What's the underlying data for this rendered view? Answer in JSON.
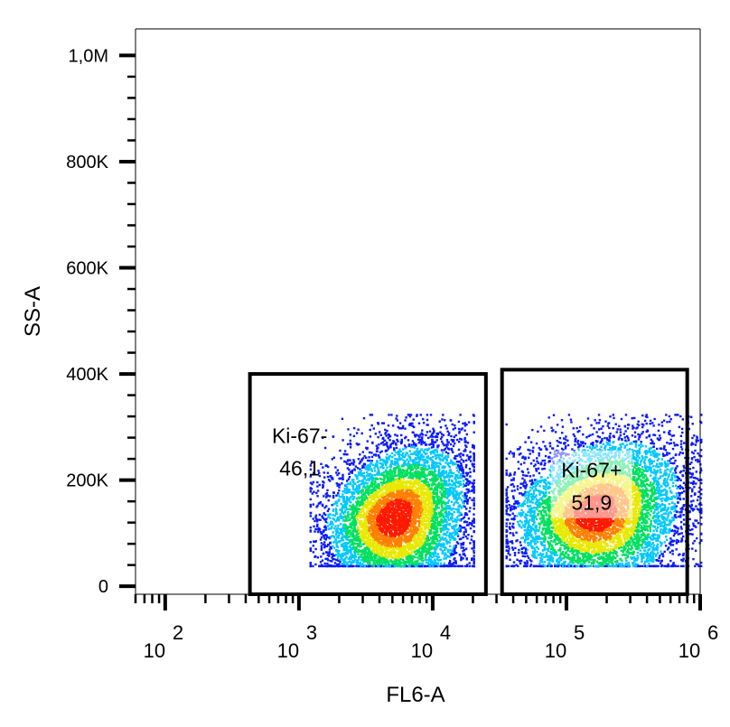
{
  "chart_data": {
    "type": "scatter",
    "subtype": "flow-cytometry-density-dot-plot",
    "xlabel": "FL6-A",
    "ylabel": "SS-A",
    "x_scale": "log",
    "xlim": [
      60,
      1000000
    ],
    "ylim": [
      -15000,
      1050000
    ],
    "x_ticks": [
      {
        "base": "10",
        "exp": "2",
        "value": 100
      },
      {
        "base": "10",
        "exp": "3",
        "value": 1000
      },
      {
        "base": "10",
        "exp": "4",
        "value": 10000
      },
      {
        "base": "10",
        "exp": "5",
        "value": 100000
      },
      {
        "base": "10",
        "exp": "6",
        "value": 1000000
      }
    ],
    "y_ticks": [
      {
        "label": "0",
        "value": 0
      },
      {
        "label": "200K",
        "value": 200000
      },
      {
        "label": "400K",
        "value": 400000
      },
      {
        "label": "600K",
        "value": 600000
      },
      {
        "label": "800K",
        "value": 800000
      },
      {
        "label": "1,0M",
        "value": 1000000
      }
    ],
    "gates": [
      {
        "name": "Ki-67-",
        "percent": "46,1",
        "x_range": [
          430,
          25000
        ],
        "y_range": [
          -15000,
          400000
        ]
      },
      {
        "name": "Ki-67+",
        "percent": "51,9",
        "x_range": [
          33000,
          800000
        ],
        "y_range": [
          -15000,
          408000
        ]
      }
    ],
    "populations": [
      {
        "gate": "Ki-67-",
        "x_range": [
          1200,
          20000
        ],
        "y_range": [
          40000,
          325000
        ],
        "peak_x": 5000,
        "peak_y": 130000
      },
      {
        "gate": "Ki-67+",
        "x_range": [
          35000,
          1000000
        ],
        "y_range": [
          40000,
          325000
        ],
        "peak_x": 160000,
        "peak_y": 140000
      }
    ],
    "colormap": [
      "#0a1aff",
      "#00c8ff",
      "#00e060",
      "#e8e800",
      "#ff8000",
      "#ff1a00"
    ],
    "grid": false,
    "legend": "none"
  }
}
